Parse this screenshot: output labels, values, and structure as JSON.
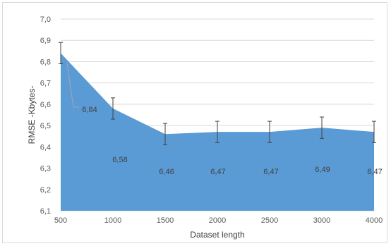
{
  "chart_data": {
    "type": "area",
    "x": [
      500,
      1000,
      1500,
      2000,
      2500,
      3000,
      4000
    ],
    "x_tick_labels": [
      "500",
      "1000",
      "1500",
      "2000",
      "2500",
      "3000",
      "4000"
    ],
    "values": [
      6.84,
      6.58,
      6.46,
      6.47,
      6.47,
      6.49,
      6.47
    ],
    "data_labels": [
      "6,84",
      "6,58",
      "6,46",
      "6,47",
      "6,47",
      "6,49",
      "6,47"
    ],
    "error": [
      0.05,
      0.05,
      0.05,
      0.05,
      0.05,
      0.05,
      0.05
    ],
    "xlabel": "Dataset length",
    "ylabel": "RMSE -Kbytes-",
    "ylim": [
      6.1,
      7.0
    ],
    "y_tick_values": [
      6.1,
      6.2,
      6.3,
      6.4,
      6.5,
      6.6,
      6.7,
      6.8,
      6.9,
      7.0
    ],
    "y_tick_labels": [
      "6,1",
      "6,2",
      "6,3",
      "6,4",
      "6,5",
      "6,6",
      "6,7",
      "6,8",
      "6,9",
      "7,0"
    ],
    "grid": true,
    "legend": "none",
    "fill_color": "#5b9bd5",
    "leader_color": "#a6a6a6"
  }
}
